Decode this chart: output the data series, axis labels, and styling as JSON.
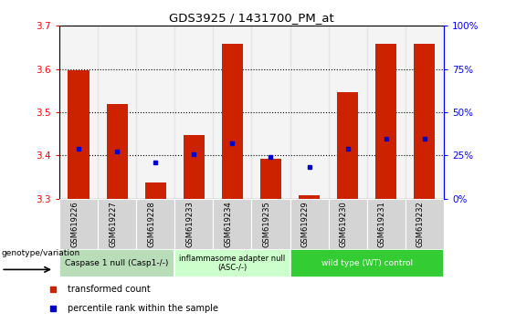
{
  "title": "GDS3925 / 1431700_PM_at",
  "samples": [
    "GSM619226",
    "GSM619227",
    "GSM619228",
    "GSM619233",
    "GSM619234",
    "GSM619235",
    "GSM619229",
    "GSM619230",
    "GSM619231",
    "GSM619232"
  ],
  "bar_values": [
    3.597,
    3.519,
    3.337,
    3.447,
    3.659,
    3.392,
    3.308,
    3.547,
    3.659,
    3.659
  ],
  "bar_base": 3.3,
  "percentile_yvals": [
    3.415,
    3.41,
    3.383,
    3.403,
    3.428,
    3.397,
    3.373,
    3.415,
    3.438,
    3.438
  ],
  "ylim": [
    3.3,
    3.7
  ],
  "yticks": [
    3.3,
    3.4,
    3.5,
    3.6,
    3.7
  ],
  "right_yticks": [
    0,
    25,
    50,
    75,
    100
  ],
  "bar_color": "#cc2200",
  "percentile_color": "#0000cc",
  "groups": [
    {
      "label": "Caspase 1 null (Casp1-/-)",
      "start": 0,
      "end": 3,
      "color": "#b8ddb8"
    },
    {
      "label": "inflammasome adapter null\n(ASC-/-)",
      "start": 3,
      "end": 6,
      "color": "#ccffcc"
    },
    {
      "label": "wild type (WT) control",
      "start": 6,
      "end": 10,
      "color": "#33cc33"
    }
  ],
  "legend_items": [
    {
      "label": "transformed count",
      "color": "#cc2200"
    },
    {
      "label": "percentile rank within the sample",
      "color": "#0000cc"
    }
  ],
  "xlabel_text": "genotype/variation",
  "bar_width": 0.55,
  "sample_bg_color": "#d4d4d4",
  "plot_bg": "#ffffff"
}
